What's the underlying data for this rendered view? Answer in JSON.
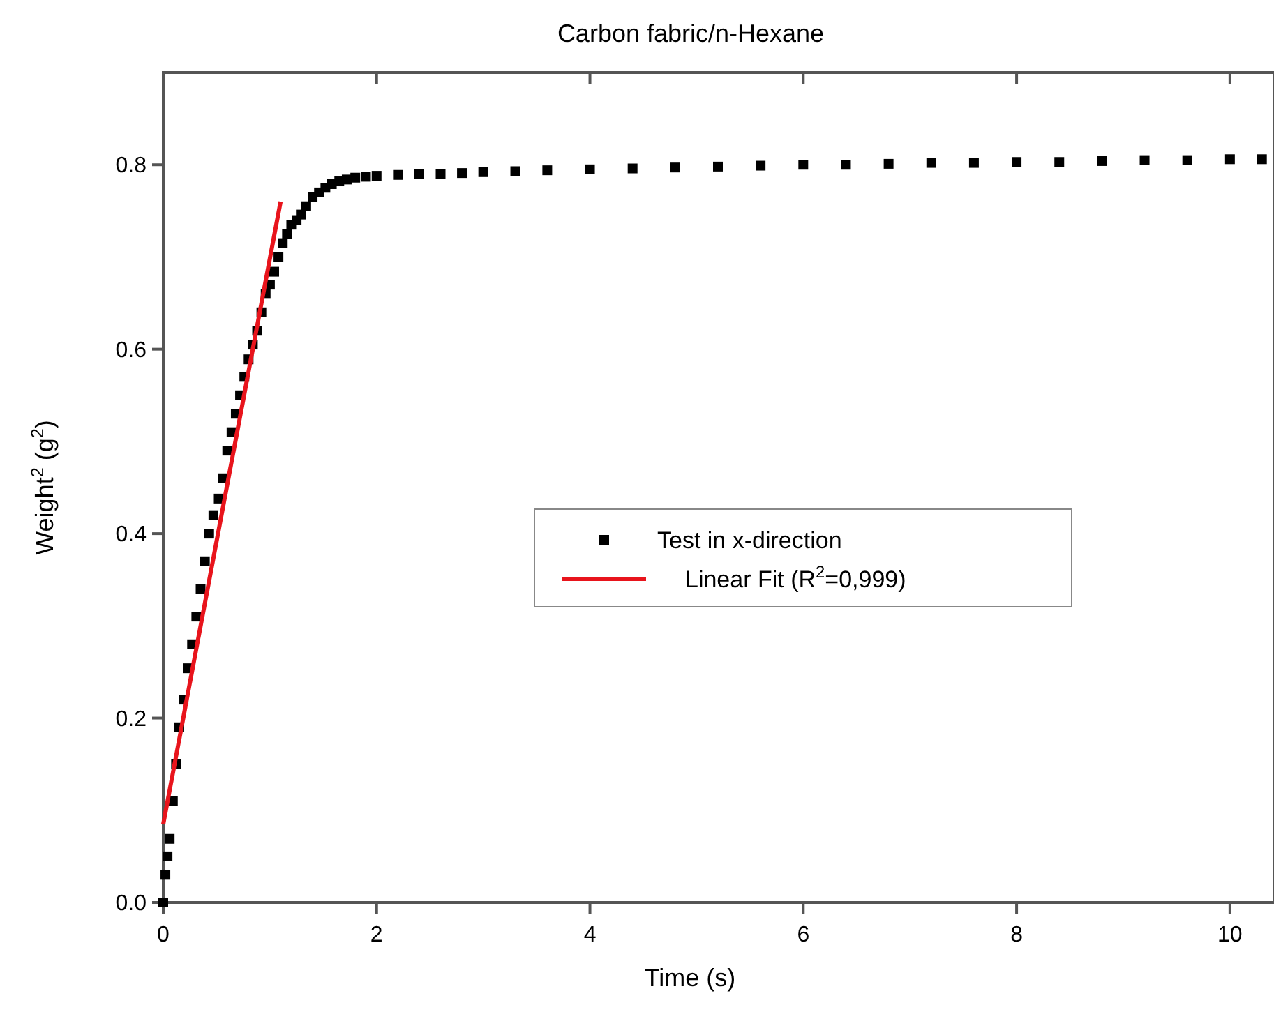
{
  "chart_data": {
    "type": "scatter",
    "title": "Carbon fabric/n-Hexane",
    "xlabel": "Time (s)",
    "ylabel": "Weight$^{2}$ (g$^{2}$)",
    "xlim": [
      0,
      10.4
    ],
    "ylim": [
      0,
      0.9
    ],
    "xticks": [
      0,
      2,
      4,
      6,
      8,
      10
    ],
    "yticks": [
      {
        "value": 0,
        "label": "0.0"
      },
      0.2,
      0.4,
      0.6,
      0.8
    ],
    "grid": false,
    "legend": "center",
    "series": [
      {
        "name": "Test in x-direction",
        "marker": "square",
        "color": "#000000",
        "x": [
          0,
          0.02,
          0.04,
          0.06,
          0.09,
          0.12,
          0.15,
          0.19,
          0.23,
          0.27,
          0.31,
          0.35,
          0.39,
          0.43,
          0.47,
          0.52,
          0.56,
          0.6,
          0.64,
          0.68,
          0.72,
          0.76,
          0.8,
          0.84,
          0.88,
          0.92,
          0.96,
          1.0,
          1.04,
          1.08,
          1.12,
          1.16,
          1.2,
          1.25,
          1.29,
          1.34,
          1.4,
          1.46,
          1.52,
          1.58,
          1.65,
          1.72,
          1.8,
          1.9,
          2.0,
          2.2,
          2.4,
          2.6,
          2.8,
          3.0,
          3.3,
          3.6,
          4.0,
          4.4,
          4.8,
          5.2,
          5.6,
          6.0,
          6.4,
          6.8,
          7.2,
          7.6,
          8.0,
          8.4,
          8.8,
          9.2,
          9.6,
          10.0,
          10.3
        ],
        "values": [
          0.0,
          0.03,
          0.05,
          0.069,
          0.11,
          0.15,
          0.19,
          0.22,
          0.254,
          0.28,
          0.31,
          0.34,
          0.37,
          0.4,
          0.42,
          0.438,
          0.46,
          0.49,
          0.51,
          0.53,
          0.55,
          0.57,
          0.589,
          0.605,
          0.62,
          0.64,
          0.66,
          0.67,
          0.684,
          0.7,
          0.715,
          0.725,
          0.735,
          0.74,
          0.746,
          0.755,
          0.765,
          0.77,
          0.775,
          0.779,
          0.782,
          0.784,
          0.786,
          0.787,
          0.788,
          0.789,
          0.79,
          0.79,
          0.791,
          0.792,
          0.793,
          0.794,
          0.795,
          0.796,
          0.797,
          0.798,
          0.799,
          0.8,
          0.8,
          0.801,
          0.802,
          0.802,
          0.803,
          0.803,
          0.804,
          0.805,
          0.805,
          0.806,
          0.806
        ]
      },
      {
        "name": "Linear Fit (R$^{2}$=0,999)",
        "type": "line",
        "marker": "none",
        "color": "#e8141c",
        "line_style": "solid",
        "x": [
          0,
          1.1
        ],
        "values": [
          0.085,
          0.76
        ]
      }
    ]
  }
}
